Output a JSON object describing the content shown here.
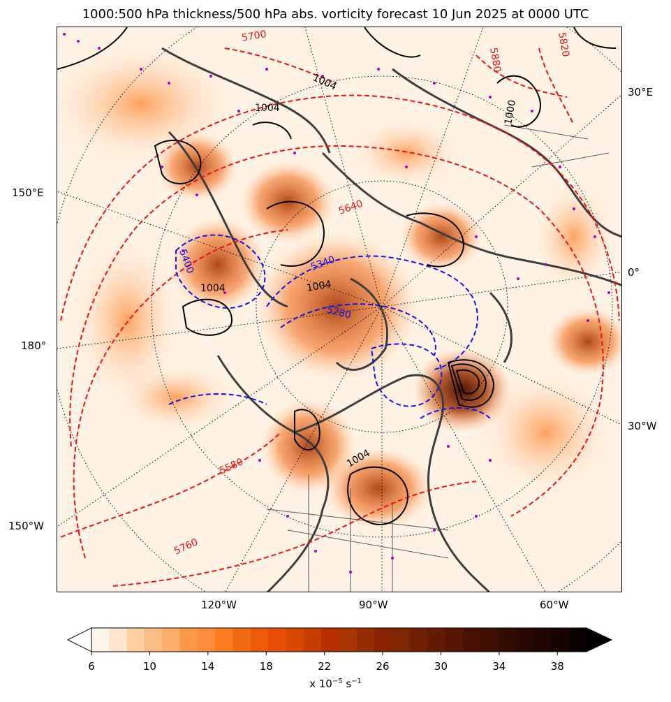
{
  "title": "1000:500 hPa thickness/500 hPa abs. vorticity forecast 10 Jun 2025 at 0000 UTC",
  "lon_labels_left": [
    "150°E",
    "180°",
    "150°W"
  ],
  "lon_labels_right": [
    "30°E",
    "0°",
    "30°W"
  ],
  "lon_labels_bottom": [
    "120°W",
    "90°W",
    "60°W"
  ],
  "contour_labels": {
    "thickness_red": [
      "5760",
      "5700",
      "5880",
      "5820",
      "5580",
      "5760",
      "5640"
    ],
    "thickness_blue": [
      "5400",
      "5340",
      "5280",
      "5340",
      "5280"
    ],
    "pressure_black": [
      "1004",
      "1004",
      "1004",
      "1004",
      "1000",
      "1004"
    ]
  },
  "colorbar": {
    "tick_labels": [
      "6",
      "10",
      "14",
      "18",
      "22",
      "26",
      "30",
      "34",
      "38"
    ],
    "unit": "x 10",
    "unit_exp": "−5",
    "unit_tail": " s",
    "unit_tail_exp": "−1",
    "colors": [
      "#fff5eb",
      "#fee6ce",
      "#fdd0a2",
      "#fdbe85",
      "#fdae6b",
      "#fd9a4a",
      "#fd8d3c",
      "#fb7d1f",
      "#f16913",
      "#ec5a0c",
      "#e64d05",
      "#d94801",
      "#c83d02",
      "#b83002",
      "#a63603",
      "#962d03",
      "#8a2200",
      "#7f2704",
      "#701f04",
      "#631b03",
      "#561602",
      "#4a1202",
      "#3e0f02",
      "#330b01",
      "#280801",
      "#1f0600",
      "#150400",
      "#0a0200"
    ]
  }
}
